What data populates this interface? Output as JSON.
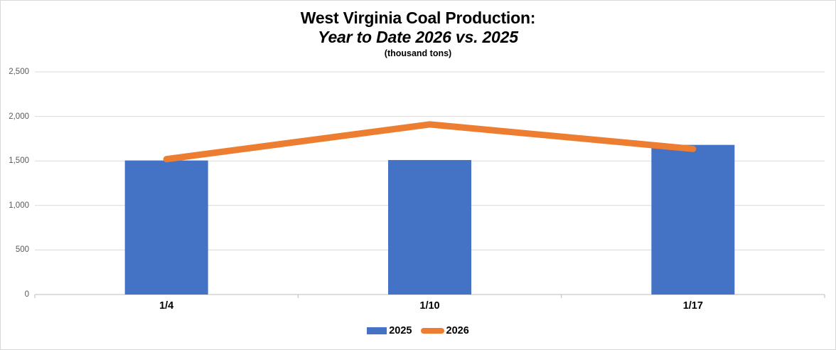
{
  "title": {
    "line1": "West Virginia Coal Production:",
    "line2": "Year to Date 2026 vs. 2025",
    "line3": "(thousand tons)"
  },
  "legend": {
    "position": "bottom",
    "items": [
      {
        "label": "2025",
        "marker": "bar-swatch"
      },
      {
        "label": "2026",
        "marker": "line-swatch"
      }
    ]
  },
  "chart_data": {
    "type": "bar",
    "title": "West Virginia Coal Production: Year to Date 2026 vs. 2025 (thousand tons)",
    "categories": [
      "1/4",
      "1/10",
      "1/17"
    ],
    "series": [
      {
        "name": "2025",
        "type": "bar",
        "color": "#4472C4",
        "values": [
          1505,
          1510,
          1680
        ]
      },
      {
        "name": "2026",
        "type": "line",
        "color": "#ED7D31",
        "values": [
          1520,
          1910,
          1635
        ]
      }
    ],
    "xlabel": "",
    "ylabel": "",
    "ylim": [
      0,
      2500
    ],
    "ytick_interval": 500,
    "ytick_labels": [
      "0",
      "500",
      "1,000",
      "1,500",
      "2,000",
      "2,500"
    ],
    "grid": "horizontal",
    "gridline_color": "#D9D9D9",
    "axis_line_color": "#C9C9C9",
    "axis_label_color": "#595959",
    "legend_position": "bottom"
  },
  "colors": {
    "background": "#FFFFFF",
    "frame_border": "#D9D9D9",
    "text": "#000000"
  }
}
